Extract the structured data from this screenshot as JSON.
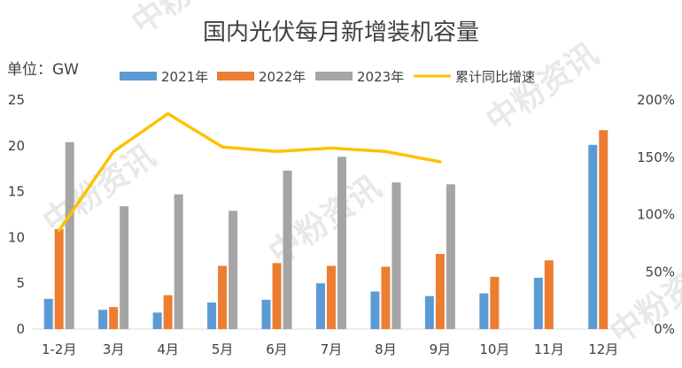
{
  "chart_data": {
    "type": "bar",
    "title": "国内光伏每月新增装机容量",
    "unit_label": "单位：GW",
    "categories": [
      "1-2月",
      "3月",
      "4月",
      "5月",
      "6月",
      "7月",
      "8月",
      "9月",
      "10月",
      "11月",
      "12月"
    ],
    "series": [
      {
        "name": "2021年",
        "type": "bar",
        "axis": "left",
        "color": "#5b9bd5",
        "values": [
          3.3,
          2.1,
          1.8,
          2.9,
          3.2,
          5.0,
          4.1,
          3.6,
          3.9,
          5.6,
          20.1
        ]
      },
      {
        "name": "2022年",
        "type": "bar",
        "axis": "left",
        "color": "#ed7d31",
        "values": [
          10.9,
          2.4,
          3.7,
          6.9,
          7.2,
          6.9,
          6.8,
          8.2,
          5.7,
          7.5,
          21.7
        ]
      },
      {
        "name": "2023年",
        "type": "bar",
        "axis": "left",
        "color": "#a5a5a5",
        "values": [
          20.4,
          13.4,
          14.7,
          12.9,
          17.3,
          18.8,
          16.0,
          15.8,
          null,
          null,
          null
        ]
      },
      {
        "name": "累计同比增速",
        "type": "line",
        "axis": "right",
        "color": "#ffc000",
        "values": [
          86,
          155,
          188,
          159,
          155,
          158,
          155,
          146,
          null,
          null,
          null
        ]
      }
    ],
    "y_left": {
      "min": 0,
      "max": 25,
      "ticks": [
        "0",
        "5",
        "10",
        "15",
        "20",
        "25"
      ]
    },
    "y_right": {
      "min": 0,
      "max": 200,
      "ticks": [
        "0%",
        "50%",
        "100%",
        "150%",
        "200%"
      ]
    },
    "legend_position": "top",
    "grid": false
  },
  "watermark": "中粉资讯"
}
